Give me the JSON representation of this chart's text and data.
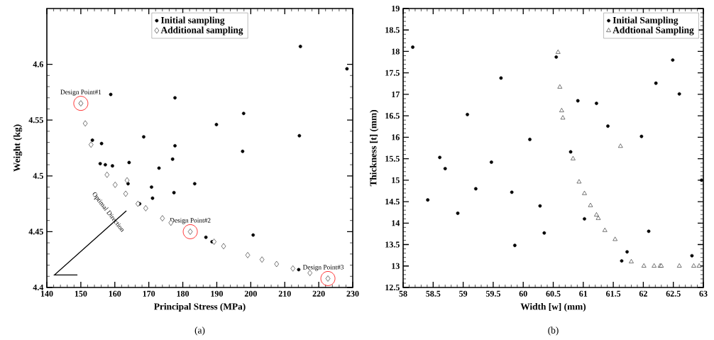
{
  "chart_data": [
    {
      "type": "scatter",
      "xlabel": "Principal Stress (MPa)",
      "ylabel": "Weight (kg)",
      "xlim": [
        140,
        230
      ],
      "ylim": [
        4.4,
        4.65
      ],
      "xticks": [
        140,
        150,
        160,
        170,
        180,
        190,
        200,
        210,
        220,
        230
      ],
      "yticks": [
        4.4,
        4.45,
        4.5,
        4.55,
        4.6
      ],
      "grid": false,
      "legend": "top",
      "series": [
        {
          "name": "Initial sampling",
          "color": "#000000",
          "marker": "circle",
          "x": [
            214.6,
            228.3,
            158.8,
            177.7,
            150.0,
            197.9,
            189.9,
            214.3,
            168.5,
            177.7,
            197.6,
            153.4,
            156.1,
            155.7,
            157.2,
            159.3,
            164.2,
            173.0,
            177.0,
            163.9,
            170.8,
            183.5,
            177.4,
            171.1,
            167.3,
            186.8,
            188.6,
            200.7,
            214.1
          ],
          "values": [
            4.616,
            4.596,
            4.573,
            4.57,
            4.565,
            4.556,
            4.546,
            4.536,
            4.535,
            4.527,
            4.522,
            4.532,
            4.529,
            4.511,
            4.51,
            4.509,
            4.512,
            4.507,
            4.515,
            4.493,
            4.49,
            4.493,
            4.485,
            4.48,
            4.475,
            4.445,
            4.441,
            4.447,
            4.416
          ]
        },
        {
          "name": "Additional sampling",
          "color": "#000000",
          "marker": "diamond",
          "x": [
            150.0,
            151.3,
            153.0,
            157.7,
            160.1,
            163.6,
            163.2,
            166.8,
            169.1,
            174.0,
            176.5,
            182.2,
            189.2,
            192.0,
            199.1,
            203.3,
            207.6,
            212.4,
            217.4,
            222.7
          ],
          "values": [
            4.565,
            4.547,
            4.528,
            4.501,
            4.492,
            4.496,
            4.484,
            4.475,
            4.471,
            4.462,
            4.458,
            4.45,
            4.441,
            4.437,
            4.429,
            4.425,
            4.421,
            4.417,
            4.413,
            4.408
          ]
        }
      ],
      "annotations": [
        {
          "text": "Design Point#1",
          "x": 150.0,
          "y": 4.565
        },
        {
          "text": "Design Point#2",
          "x": 182.2,
          "y": 4.45
        },
        {
          "text": "Design Point#3",
          "x": 222.7,
          "y": 4.408
        },
        "Optimal Direction",
        "(a)"
      ]
    },
    {
      "type": "scatter",
      "xlabel": "Width [w] (mm)",
      "ylabel": "Thickness [t] (mm)",
      "xlim": [
        58,
        63
      ],
      "ylim": [
        12.5,
        19
      ],
      "xticks": [
        58,
        58.5,
        59,
        59.5,
        60,
        60.5,
        61,
        61.5,
        62,
        62.5,
        63
      ],
      "yticks": [
        12.5,
        13,
        13.5,
        14,
        14.5,
        15,
        15.5,
        16,
        16.5,
        17,
        17.5,
        18,
        18.5,
        19
      ],
      "grid": false,
      "legend": "top right",
      "series": [
        {
          "name": "Initial Sampling",
          "color": "#000000",
          "marker": "circle",
          "x": [
            58.16,
            60.55,
            62.49,
            59.63,
            62.21,
            62.6,
            60.91,
            61.22,
            59.07,
            61.41,
            61.97,
            60.11,
            60.79,
            58.61,
            59.47,
            58.7,
            58.41,
            59.21,
            59.81,
            58.91,
            60.28,
            61.02,
            60.35,
            59.86,
            62.09,
            61.73,
            61.64,
            62.81,
            62.97
          ],
          "values": [
            18.1,
            17.87,
            17.8,
            17.38,
            17.26,
            17.01,
            16.85,
            16.79,
            16.53,
            16.26,
            16.02,
            15.95,
            15.66,
            15.53,
            15.42,
            15.27,
            14.54,
            14.8,
            14.72,
            14.23,
            14.4,
            14.1,
            13.77,
            13.48,
            13.81,
            13.33,
            13.12,
            13.24,
            15.0
          ]
        },
        {
          "name": "Addtional Sampling",
          "color": "#000000",
          "marker": "triangle",
          "x": [
            60.58,
            60.61,
            60.64,
            60.66,
            61.62,
            60.83,
            60.93,
            61.02,
            61.12,
            61.22,
            61.25,
            61.36,
            61.53,
            61.8,
            62.01,
            62.18,
            62.28,
            62.3,
            62.6,
            62.84,
            62.93
          ],
          "values": [
            17.98,
            17.17,
            16.62,
            16.45,
            15.79,
            15.5,
            14.96,
            14.69,
            14.41,
            14.19,
            14.11,
            13.83,
            13.62,
            13.1,
            13.0,
            13.0,
            13.0,
            13.0,
            13.0,
            13.0,
            13.0
          ]
        }
      ],
      "annotations": [
        "(b)"
      ]
    }
  ]
}
